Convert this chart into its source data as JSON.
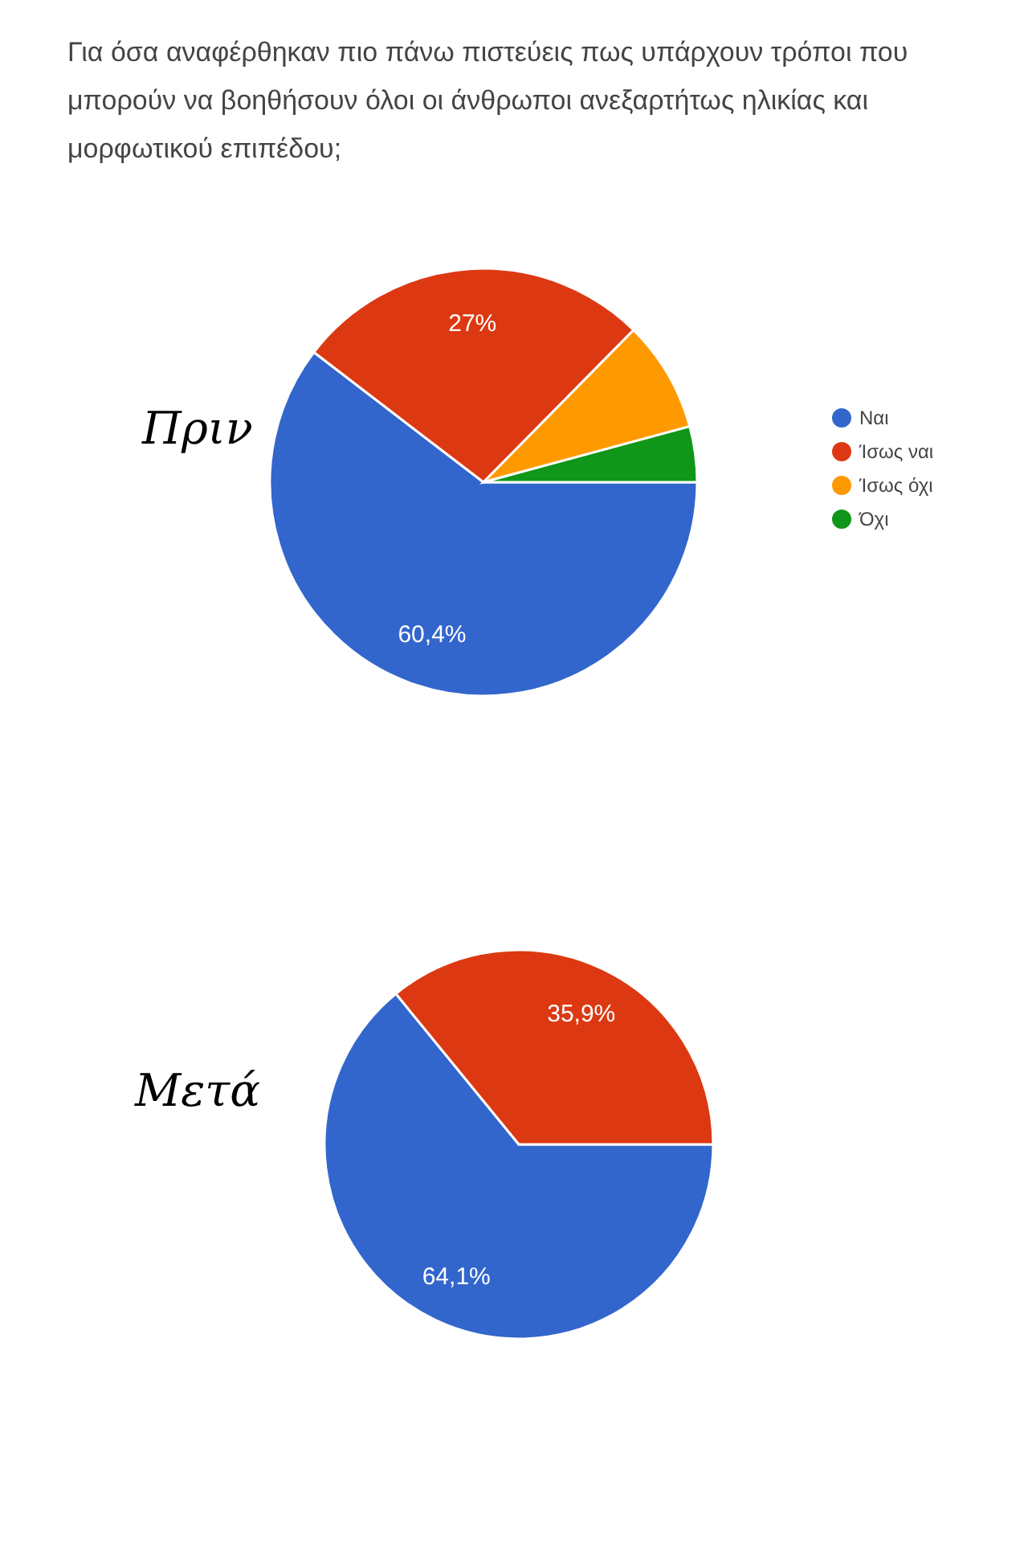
{
  "chart_data": [
    {
      "type": "pie",
      "title": "Για όσα αναφέρθηκαν πιο πάνω πιστεύεις πως υπάρχουν τρόποι που μπορούν να βοηθήσουν όλοι οι άνθρωποι ανεξαρτήτως ηλικίας και μορφωτικού επιπέδου;",
      "subtitle": "Πριν",
      "categories": [
        "Ναι",
        "Ίσως ναι",
        "Ίσως όχι",
        "Όχι"
      ],
      "values": [
        60.4,
        27,
        8.4,
        4.2
      ],
      "colors": [
        "#3366cc",
        "#dc3912",
        "#ff9900",
        "#109618"
      ],
      "value_labels": [
        "60,4%",
        "27%",
        null,
        null
      ],
      "legend": "right"
    },
    {
      "type": "pie",
      "title": "Μετά",
      "categories": [
        null,
        null
      ],
      "values": [
        64.1,
        35.9
      ],
      "colors": [
        "#3366cc",
        "#dc3912"
      ],
      "value_labels": [
        "64,1%",
        "35,9%"
      ],
      "legend": false
    }
  ]
}
